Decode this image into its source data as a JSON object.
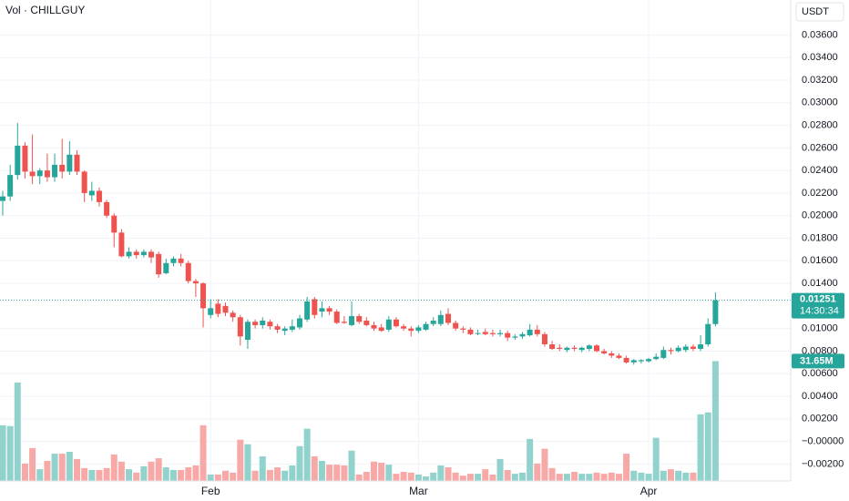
{
  "chart_data": {
    "type": "candlestick",
    "legend_title": "Vol · CHILLGUY",
    "currency": "USDT",
    "countdown": "14:30:34",
    "volume_last_label": "31.65M",
    "up_color": "#26a69a",
    "down_color": "#ef5350",
    "volume_up_color": "#92d2cc",
    "volume_down_color": "#f7a9a7",
    "grid": true,
    "ylim": [
      -0.0035,
      0.0391
    ],
    "volume_lim": [
      0,
      127
    ],
    "yticks": [
      {
        "value": 0.036,
        "label": "0.03600"
      },
      {
        "value": 0.034,
        "label": "0.03400"
      },
      {
        "value": 0.032,
        "label": "0.03200"
      },
      {
        "value": 0.03,
        "label": "0.03000"
      },
      {
        "value": 0.028,
        "label": "0.02800"
      },
      {
        "value": 0.026,
        "label": "0.02600"
      },
      {
        "value": 0.024,
        "label": "0.02400"
      },
      {
        "value": 0.022,
        "label": "0.02200"
      },
      {
        "value": 0.02,
        "label": "0.02000"
      },
      {
        "value": 0.018,
        "label": "0.01800"
      },
      {
        "value": 0.016,
        "label": "0.01600"
      },
      {
        "value": 0.014,
        "label": "0.01400"
      },
      {
        "value": 0.01,
        "label": "0.01000"
      },
      {
        "value": 0.008,
        "label": "0.00800"
      },
      {
        "value": 0.006,
        "label": "0.00600"
      },
      {
        "value": 0.004,
        "label": "0.00400"
      },
      {
        "value": 0.002,
        "label": "0.00200"
      },
      {
        "value": 0,
        "label": "−0.00000"
      },
      {
        "value": -0.002,
        "label": "−0.00200"
      }
    ],
    "categories": [
      null,
      null,
      null,
      null,
      null,
      null,
      null,
      null,
      null,
      null,
      null,
      null,
      null,
      null,
      null,
      null,
      null,
      null,
      null,
      null,
      null,
      null,
      null,
      null,
      null,
      null,
      null,
      null,
      "Feb",
      null,
      null,
      null,
      null,
      null,
      null,
      null,
      null,
      null,
      null,
      null,
      null,
      null,
      null,
      null,
      null,
      null,
      null,
      null,
      null,
      null,
      null,
      null,
      null,
      null,
      null,
      null,
      "Mar",
      null,
      null,
      null,
      null,
      null,
      null,
      null,
      null,
      null,
      null,
      null,
      null,
      null,
      null,
      null,
      null,
      null,
      null,
      null,
      null,
      null,
      null,
      null,
      null,
      null,
      null,
      null,
      null,
      null,
      null,
      "Apr",
      null,
      null,
      null,
      null,
      null,
      null,
      null,
      null,
      null
    ],
    "open": [
      0.0213,
      0.0217,
      0.0236,
      0.0262,
      0.0239,
      0.0235,
      0.024,
      0.0234,
      0.0245,
      0.0239,
      0.0254,
      0.0239,
      0.0218,
      0.0222,
      0.0212,
      0.02,
      0.0185,
      0.0164,
      0.0168,
      0.0165,
      0.0168,
      0.0166,
      0.0149,
      0.0158,
      0.0162,
      0.0158,
      0.0142,
      0.014,
      0.0112,
      0.0122,
      0.012,
      0.0114,
      0.011,
      0.009,
      0.0106,
      0.0103,
      0.0106,
      0.0102,
      0.0098,
      0.0099,
      0.0101,
      0.0108,
      0.0126,
      0.0115,
      0.0118,
      0.0115,
      0.0106,
      0.0103,
      0.0111,
      0.0107,
      0.0103,
      0.0101,
      0.0099,
      0.0108,
      0.0102,
      0.01,
      0.0098,
      0.0099,
      0.0104,
      0.0104,
      0.0113,
      0.0105,
      0.01,
      0.0099,
      0.0096,
      0.0097,
      0.0096,
      0.0095,
      0.0096,
      0.0092,
      0.0093,
      0.0094,
      0.0099,
      0.0095,
      0.0086,
      0.0083,
      0.0081,
      0.0083,
      0.0081,
      0.0082,
      0.0085,
      0.008,
      0.0078,
      0.0076,
      0.0074,
      0.007,
      0.0071,
      0.0071,
      0.0073,
      0.0074,
      0.0081,
      0.008,
      0.0081,
      0.0084,
      0.0082,
      0.0086,
      0.0104
    ],
    "high": [
      0.0222,
      0.0245,
      0.0282,
      0.0265,
      0.0272,
      0.0242,
      0.0255,
      0.0255,
      0.0268,
      0.0266,
      0.0258,
      0.024,
      0.023,
      0.0225,
      0.0214,
      0.0202,
      0.0188,
      0.0172,
      0.017,
      0.017,
      0.017,
      0.0168,
      0.0162,
      0.0164,
      0.0166,
      0.016,
      0.0144,
      0.0141,
      0.0126,
      0.0126,
      0.0123,
      0.0116,
      0.0112,
      0.0108,
      0.0108,
      0.011,
      0.0108,
      0.0104,
      0.0102,
      0.0108,
      0.0112,
      0.0128,
      0.0128,
      0.0124,
      0.012,
      0.0117,
      0.0111,
      0.0124,
      0.0113,
      0.011,
      0.0106,
      0.0104,
      0.0111,
      0.011,
      0.0104,
      0.0102,
      0.0103,
      0.0106,
      0.011,
      0.0116,
      0.0118,
      0.0107,
      0.0102,
      0.0101,
      0.0099,
      0.01,
      0.0099,
      0.0099,
      0.0098,
      0.0095,
      0.0097,
      0.0104,
      0.0103,
      0.0097,
      0.0089,
      0.0086,
      0.0084,
      0.0085,
      0.0084,
      0.0086,
      0.0086,
      0.0082,
      0.008,
      0.0078,
      0.0076,
      0.0073,
      0.0073,
      0.0074,
      0.0078,
      0.0084,
      0.0083,
      0.0085,
      0.0086,
      0.0086,
      0.0094,
      0.0109,
      0.0132
    ],
    "low": [
      0.02,
      0.0213,
      0.0232,
      0.0233,
      0.0228,
      0.0228,
      0.023,
      0.023,
      0.0233,
      0.0236,
      0.0236,
      0.0212,
      0.0213,
      0.0208,
      0.0198,
      0.0172,
      0.0163,
      0.0162,
      0.0162,
      0.0163,
      0.0158,
      0.0145,
      0.0148,
      0.0155,
      0.0155,
      0.014,
      0.0128,
      0.0101,
      0.0109,
      0.011,
      0.0111,
      0.0106,
      0.0085,
      0.0082,
      0.01,
      0.01,
      0.0099,
      0.0096,
      0.0094,
      0.0097,
      0.0099,
      0.0106,
      0.0109,
      0.011,
      0.0112,
      0.0104,
      0.0104,
      0.0102,
      0.0104,
      0.0102,
      0.0098,
      0.0097,
      0.0097,
      0.0101,
      0.0098,
      0.0093,
      0.0096,
      0.0098,
      0.0102,
      0.0102,
      0.0103,
      0.0098,
      0.0096,
      0.0094,
      0.0094,
      0.0094,
      0.0093,
      0.0093,
      0.0089,
      0.009,
      0.0091,
      0.0093,
      0.0093,
      0.0084,
      0.0081,
      0.008,
      0.0079,
      0.008,
      0.0079,
      0.008,
      0.0079,
      0.0077,
      0.0074,
      0.0073,
      0.0069,
      0.0068,
      0.0069,
      0.007,
      0.0072,
      0.0073,
      0.0077,
      0.0079,
      0.0079,
      0.008,
      0.008,
      0.0084,
      0.0102
    ],
    "close": [
      0.0217,
      0.0236,
      0.0262,
      0.0239,
      0.0235,
      0.024,
      0.0234,
      0.0245,
      0.0239,
      0.0254,
      0.0239,
      0.022,
      0.0222,
      0.0212,
      0.02,
      0.0185,
      0.0164,
      0.0168,
      0.0165,
      0.0168,
      0.0163,
      0.0148,
      0.0158,
      0.0162,
      0.0158,
      0.0142,
      0.014,
      0.0118,
      0.0118,
      0.0113,
      0.0114,
      0.011,
      0.0093,
      0.0106,
      0.0103,
      0.0107,
      0.0102,
      0.0099,
      0.01,
      0.0102,
      0.0109,
      0.0124,
      0.0112,
      0.0118,
      0.0115,
      0.0105,
      0.0105,
      0.0111,
      0.0106,
      0.0103,
      0.01,
      0.0098,
      0.0108,
      0.0102,
      0.01,
      0.0098,
      0.0101,
      0.0104,
      0.0107,
      0.0112,
      0.0105,
      0.01,
      0.0099,
      0.0095,
      0.0096,
      0.0095,
      0.0095,
      0.0096,
      0.0092,
      0.0093,
      0.0095,
      0.0099,
      0.0095,
      0.0086,
      0.0082,
      0.0082,
      0.0083,
      0.0082,
      0.0083,
      0.0085,
      0.008,
      0.0078,
      0.0076,
      0.0074,
      0.007,
      0.0072,
      0.0072,
      0.0073,
      0.0075,
      0.0081,
      0.008,
      0.0083,
      0.0084,
      0.0082,
      0.0086,
      0.0104,
      0.01251
    ],
    "volume": [
      14.7,
      14.5,
      26,
      4.6,
      8.7,
      3.1,
      5.3,
      7.2,
      7.2,
      7.7,
      5.8,
      3.4,
      2.9,
      2.9,
      3.4,
      7,
      5.1,
      3.1,
      2.2,
      3.9,
      5.1,
      6,
      3.6,
      2.9,
      2.9,
      3.6,
      4.1,
      14.7,
      1.7,
      1.7,
      2.7,
      2.2,
      10.9,
      9.7,
      2.7,
      6.5,
      2.9,
      3.6,
      2.7,
      4.1,
      9.2,
      13.8,
      6.5,
      5.3,
      4.3,
      4.3,
      4.1,
      8,
      1.7,
      2.4,
      5.1,
      4.8,
      4.3,
      1.9,
      2.4,
      2.2,
      1.7,
      1.2,
      2.2,
      4.1,
      3.6,
      2.2,
      1.4,
      1.9,
      1.9,
      3.1,
      1.7,
      5.8,
      2.9,
      1.9,
      2.2,
      11.1,
      4.6,
      8.5,
      3.4,
      1.9,
      1.9,
      2.4,
      1.9,
      1.9,
      2.2,
      1.9,
      2.2,
      1.9,
      7.2,
      2.7,
      2.2,
      1.9,
      11.4,
      2.7,
      3.1,
      2.7,
      2.2,
      2.2,
      17.6,
      18.1,
      31.65
    ]
  }
}
